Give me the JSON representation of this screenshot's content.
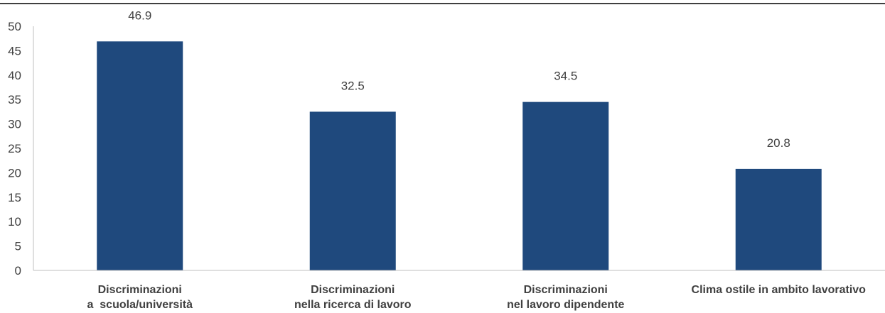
{
  "chart_data": {
    "type": "bar",
    "categories": [
      [
        "Discriminazioni",
        "a  scuola/università"
      ],
      [
        "Discriminazioni",
        "nella ricerca di lavoro"
      ],
      [
        "Discriminazioni",
        "nel lavoro dipendente"
      ],
      [
        "Clima ostile in ambito lavorativo"
      ]
    ],
    "values": [
      46.9,
      32.5,
      34.5,
      20.8
    ],
    "value_labels": [
      "46.9",
      "32.5",
      "34.5",
      "20.8"
    ],
    "ylim": [
      0,
      50
    ],
    "yticks": [
      0,
      5,
      10,
      15,
      20,
      25,
      30,
      35,
      40,
      45,
      50
    ],
    "grid": false,
    "legend": "none",
    "bar_color": "#1f497d",
    "text_color": "#404040",
    "axis_color": "#bfbfbf"
  }
}
